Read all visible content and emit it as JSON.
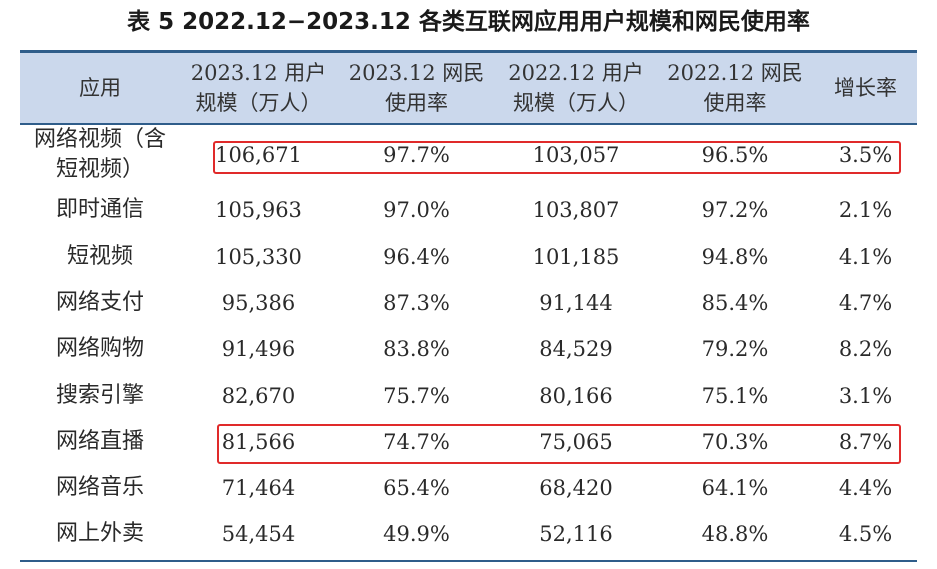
{
  "title": "表 5  2022.12−2023.12 各类互联网应用用户规模和网民使用率",
  "table": {
    "columns": [
      "应用",
      "2023.12 用户\n规模（万人）",
      "2023.12 网民\n使用率",
      "2022.12 用户\n规模（万人）",
      "2022.12 网民\n使用率",
      "增长率"
    ],
    "rows": [
      {
        "app": "网络视频（含\n短视频）",
        "users_2023": "106,671",
        "rate_2023": "97.7%",
        "users_2022": "103,057",
        "rate_2022": "96.5%",
        "growth": "3.5%"
      },
      {
        "app": "即时通信",
        "users_2023": "105,963",
        "rate_2023": "97.0%",
        "users_2022": "103,807",
        "rate_2022": "97.2%",
        "growth": "2.1%"
      },
      {
        "app": "短视频",
        "users_2023": "105,330",
        "rate_2023": "96.4%",
        "users_2022": "101,185",
        "rate_2022": "94.8%",
        "growth": "4.1%"
      },
      {
        "app": "网络支付",
        "users_2023": "95,386",
        "rate_2023": "87.3%",
        "users_2022": "91,144",
        "rate_2022": "85.4%",
        "growth": "4.7%"
      },
      {
        "app": "网络购物",
        "users_2023": "91,496",
        "rate_2023": "83.8%",
        "users_2022": "84,529",
        "rate_2022": "79.2%",
        "growth": "8.2%"
      },
      {
        "app": "搜索引擎",
        "users_2023": "82,670",
        "rate_2023": "75.7%",
        "users_2022": "80,166",
        "rate_2022": "75.1%",
        "growth": "3.1%"
      },
      {
        "app": "网络直播",
        "users_2023": "81,566",
        "rate_2023": "74.7%",
        "users_2022": "75,065",
        "rate_2022": "70.3%",
        "growth": "8.7%"
      },
      {
        "app": "网络音乐",
        "users_2023": "71,464",
        "rate_2023": "65.4%",
        "users_2022": "68,420",
        "rate_2022": "64.1%",
        "growth": "4.4%"
      },
      {
        "app": "网上外卖",
        "users_2023": "54,454",
        "rate_2023": "49.9%",
        "users_2022": "52,116",
        "rate_2022": "48.8%",
        "growth": "4.5%"
      }
    ]
  },
  "colors": {
    "header_bg": "#cbd8ec",
    "rule": "#2f5d8a",
    "highlight": "#e02a2a"
  }
}
